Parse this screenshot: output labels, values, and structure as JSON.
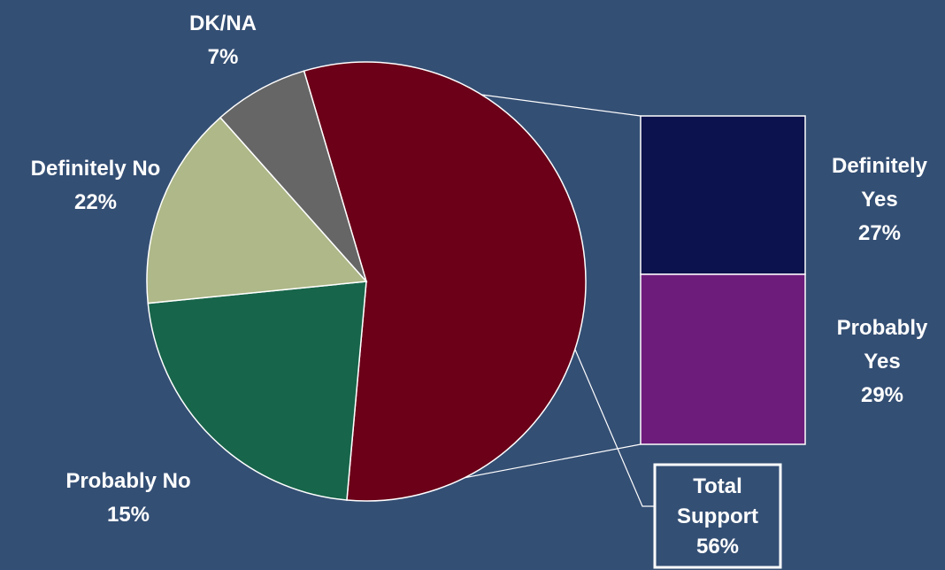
{
  "chart_data": {
    "type": "pie",
    "title": "",
    "slices": [
      {
        "label_lines": [
          "Definitely No",
          "22%"
        ],
        "value": 22,
        "color": "#17654a"
      },
      {
        "label_lines": [
          "Probably No",
          "15%"
        ],
        "value": 15,
        "color": "#aeb888"
      },
      {
        "label_lines": [
          "DK/NA",
          "7%"
        ],
        "value": 7,
        "color": "#666666"
      }
    ],
    "exploded_slice": {
      "label_lines": [
        "Total",
        "Support",
        "56%"
      ],
      "value": 56,
      "color": "#6b0018",
      "breakdown": [
        {
          "label_lines": [
            "Definitely",
            "Yes",
            "27%"
          ],
          "value": 27,
          "color": "#0b124d"
        },
        {
          "label_lines": [
            "Probably",
            "Yes",
            "29%"
          ],
          "value": 29,
          "color": "#6d1c7c"
        }
      ]
    },
    "legend": "none"
  }
}
